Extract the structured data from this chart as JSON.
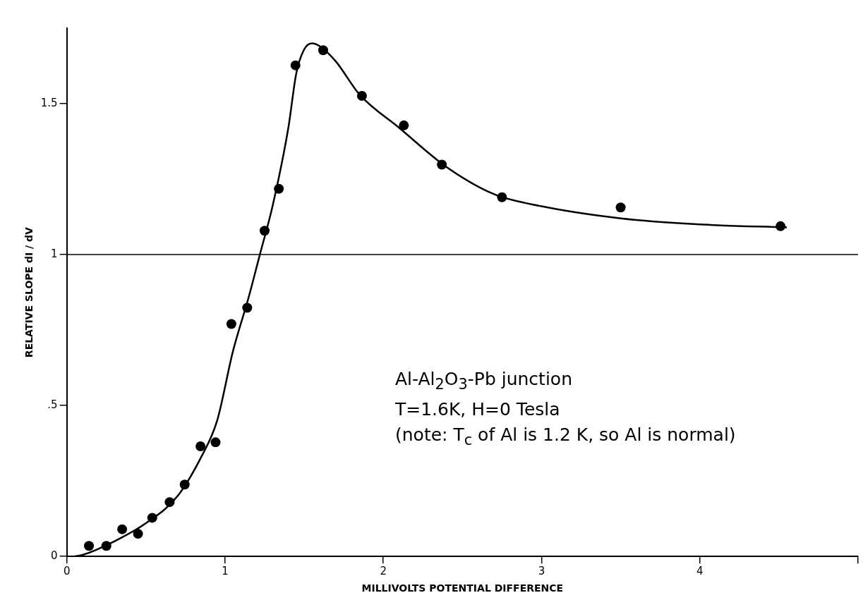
{
  "chart_data": {
    "type": "scatter",
    "xlabel": "MILLIVOLTS POTENTIAL DIFFERENCE",
    "ylabel": "RELATIVE SLOPE dI / dV",
    "xlim": [
      0,
      5
    ],
    "xticks": [
      0,
      1,
      2,
      3,
      4,
      {
        "value": 5,
        "label": null
      }
    ],
    "ylim": [
      0,
      1.75
    ],
    "yticks": [
      0,
      {
        "value": 0.5,
        "label": ".5"
      },
      1,
      1.5
    ],
    "grid": false,
    "legend": false,
    "marker": "circle",
    "series": [
      {
        "color": "#000000",
        "x": [
          0.14,
          0.25,
          0.35,
          0.45,
          0.54,
          0.65,
          0.745,
          0.845,
          0.94,
          1.04,
          1.14,
          1.25,
          1.34,
          1.445,
          1.62,
          1.865,
          2.13,
          2.37,
          2.75,
          3.5,
          4.51
        ],
        "values": [
          0.035,
          0.035,
          0.09,
          0.075,
          0.128,
          0.18,
          0.238,
          0.365,
          0.378,
          0.77,
          0.824,
          1.079,
          1.218,
          1.627,
          1.677,
          1.526,
          1.428,
          1.298,
          1.19,
          1.156,
          1.094
        ]
      },
      {
        "type": "line",
        "color": "#000000",
        "marker": "none",
        "line_style": "solid",
        "x": [
          0.05,
          0.1,
          0.3,
          0.5,
          0.7,
          0.85,
          0.95,
          1.05,
          1.15,
          1.22,
          1.3,
          1.4,
          1.45,
          1.5,
          1.55,
          1.6,
          1.7,
          1.85,
          2.1,
          2.4,
          2.7,
          3.0,
          3.5,
          4.0,
          4.55
        ],
        "values": [
          0,
          0.005,
          0.05,
          0.11,
          0.2,
          0.33,
          0.45,
          0.68,
          0.86,
          1.0,
          1.16,
          1.42,
          1.6,
          1.68,
          1.7,
          1.69,
          1.64,
          1.53,
          1.42,
          1.29,
          1.2,
          1.16,
          1.12,
          1.1,
          1.09
        ]
      }
    ],
    "ref_lines": [
      {
        "axis": "y",
        "value": 1,
        "color": "#000000"
      }
    ],
    "annotations": [
      "Al-Al$_{2}$O$_{3}$-Pb junction",
      "T=1.6K, H=0 Tesla",
      "(note: T$_{c}$ of Al is 1.2 K, so Al is normal)"
    ]
  }
}
